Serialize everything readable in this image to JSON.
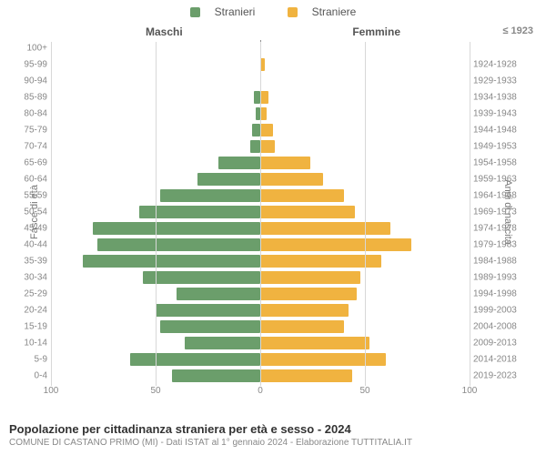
{
  "legend": {
    "male": {
      "label": "Stranieri",
      "color": "#6b9e6b"
    },
    "female": {
      "label": "Straniere",
      "color": "#f0b340"
    }
  },
  "headers": {
    "male": "Maschi",
    "female": "Femmine",
    "birth_top": "≤ 1923"
  },
  "axis": {
    "y_left_title": "Fasce di età",
    "y_right_title": "Anni di nascita",
    "x_max": 100,
    "x_ticks": [
      100,
      50,
      0,
      50,
      100
    ],
    "grid_color": "#d8d8d8",
    "centerline_color": "#909090",
    "label_color": "#888888",
    "label_fontsize": 10
  },
  "style": {
    "bar_fill_pct": 76,
    "male_color": "#6b9e6b",
    "female_color": "#f0b340",
    "background": "#ffffff"
  },
  "rows": [
    {
      "age": "100+",
      "birth": "",
      "m": 0,
      "f": 0
    },
    {
      "age": "95-99",
      "birth": "1924-1928",
      "m": 0,
      "f": 2
    },
    {
      "age": "90-94",
      "birth": "1929-1933",
      "m": 0,
      "f": 0
    },
    {
      "age": "85-89",
      "birth": "1934-1938",
      "m": 3,
      "f": 4
    },
    {
      "age": "80-84",
      "birth": "1939-1943",
      "m": 2,
      "f": 3
    },
    {
      "age": "75-79",
      "birth": "1944-1948",
      "m": 4,
      "f": 6
    },
    {
      "age": "70-74",
      "birth": "1949-1953",
      "m": 5,
      "f": 7
    },
    {
      "age": "65-69",
      "birth": "1954-1958",
      "m": 20,
      "f": 24
    },
    {
      "age": "60-64",
      "birth": "1959-1963",
      "m": 30,
      "f": 30
    },
    {
      "age": "55-59",
      "birth": "1964-1968",
      "m": 48,
      "f": 40
    },
    {
      "age": "50-54",
      "birth": "1969-1973",
      "m": 58,
      "f": 45
    },
    {
      "age": "45-49",
      "birth": "1974-1978",
      "m": 80,
      "f": 62
    },
    {
      "age": "40-44",
      "birth": "1979-1983",
      "m": 78,
      "f": 72
    },
    {
      "age": "35-39",
      "birth": "1984-1988",
      "m": 85,
      "f": 58
    },
    {
      "age": "30-34",
      "birth": "1989-1993",
      "m": 56,
      "f": 48
    },
    {
      "age": "25-29",
      "birth": "1994-1998",
      "m": 40,
      "f": 46
    },
    {
      "age": "20-24",
      "birth": "1999-2003",
      "m": 50,
      "f": 42
    },
    {
      "age": "15-19",
      "birth": "2004-2008",
      "m": 48,
      "f": 40
    },
    {
      "age": "10-14",
      "birth": "2009-2013",
      "m": 36,
      "f": 52
    },
    {
      "age": "5-9",
      "birth": "2014-2018",
      "m": 62,
      "f": 60
    },
    {
      "age": "0-4",
      "birth": "2019-2023",
      "m": 42,
      "f": 44
    }
  ],
  "footer": {
    "title": "Popolazione per cittadinanza straniera per età e sesso - 2024",
    "subtitle": "COMUNE DI CASTANO PRIMO (MI) - Dati ISTAT al 1° gennaio 2024 - Elaborazione TUTTITALIA.IT"
  }
}
